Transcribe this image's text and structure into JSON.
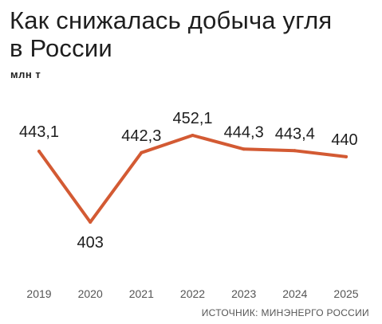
{
  "header": {
    "title_line1": "Как снижалась добыча угля",
    "title_line2": "в России",
    "unit": "млн т"
  },
  "source": "ИСТОЧНИК: МИНЭНЕРГО РОССИИ",
  "colors": {
    "line": "#D35A33",
    "text": "#1e1e1e",
    "axis_text": "#555555"
  },
  "chart_data": {
    "type": "line",
    "title": "Как снижалась добыча угля в России",
    "ylabel": "млн т",
    "xlabel": "",
    "grid": false,
    "legend": "none",
    "x": [
      "2019",
      "2020",
      "2021",
      "2022",
      "2023",
      "2024",
      "2025"
    ],
    "values": [
      443.1,
      403,
      442.3,
      452.1,
      444.3,
      443.4,
      440
    ],
    "labels": [
      "443,1",
      "403",
      "442,3",
      "452,1",
      "444,3",
      "443,4",
      "440"
    ],
    "ylim": [
      400,
      455
    ]
  }
}
